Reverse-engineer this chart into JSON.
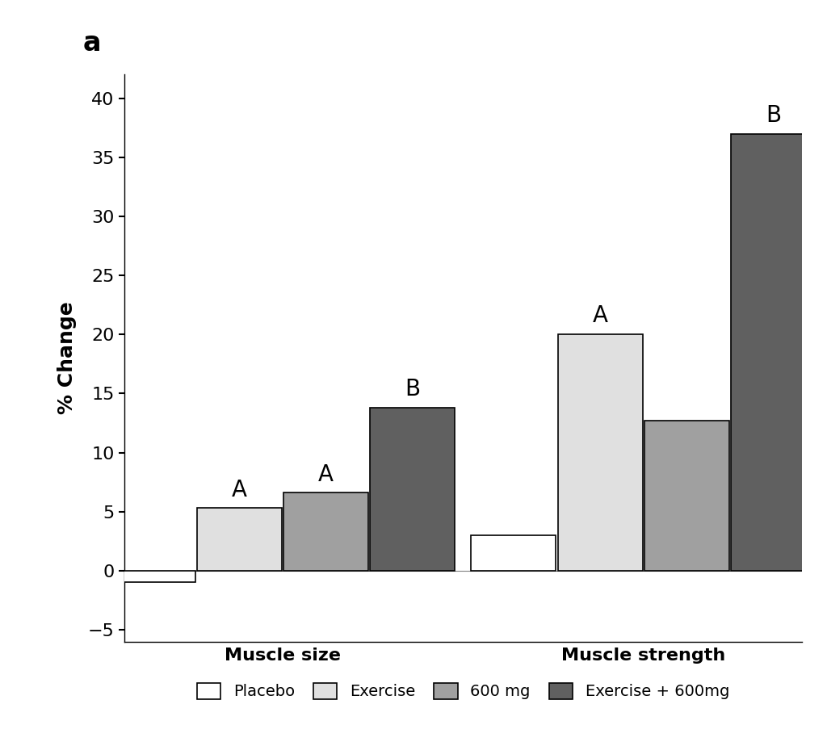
{
  "groups": [
    "Muscle size",
    "Muscle strength"
  ],
  "categories": [
    "Placebo",
    "Exercise",
    "600 mg",
    "Exercise + 600mg"
  ],
  "values": {
    "Muscle size": [
      -1.0,
      5.3,
      6.6,
      13.8
    ],
    "Muscle strength": [
      3.0,
      20.0,
      12.7,
      37.0
    ]
  },
  "bar_colors": [
    "#ffffff",
    "#e0e0e0",
    "#a0a0a0",
    "#606060"
  ],
  "bar_edge_colors": [
    "#000000",
    "#000000",
    "#000000",
    "#000000"
  ],
  "group_labels": [
    "Muscle size",
    "Muscle strength"
  ],
  "ylabel": "% Change",
  "ylim": [
    -6,
    42
  ],
  "yticks": [
    -5,
    0,
    5,
    10,
    15,
    20,
    25,
    30,
    35,
    40
  ],
  "title": "a",
  "legend_labels": [
    "Placebo",
    "Exercise",
    "600 mg",
    "Exercise + 600mg"
  ],
  "bar_width": 0.12,
  "background_color": "#ffffff",
  "annotation_fontsize": 20,
  "group_label_fontsize": 16,
  "ylabel_fontsize": 18,
  "ytick_fontsize": 16
}
